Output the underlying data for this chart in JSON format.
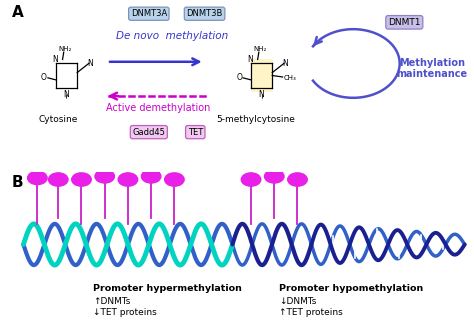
{
  "bg_color": "#ffffff",
  "panel_a_label": "A",
  "panel_b_label": "B",
  "dnmt3a_text": "DNMT3A",
  "dnmt3b_text": "DNMT3B",
  "dnmt1_text": "DNMT1",
  "de_novo_text": "De novo  methylation",
  "active_demeth_text": "Active demethylation",
  "meth_maint_text": "Methylation\nmaintenance",
  "cytosine_label": "Cytosine",
  "methcytosine_label": "5-methylcytosine",
  "gadd45_text": "Gadd45",
  "tet_text": "TET",
  "blue_box_color": "#b8d4ec",
  "purple_box_color": "#c8c0e8",
  "pink_box_color": "#f0c8f0",
  "arrow_blue": "#3535cc",
  "arrow_pink": "#cc00cc",
  "maint_blue": "#5050cc",
  "hyper_title": "Promoter hypermethylation",
  "hyper_line1": "↑DNMTs",
  "hyper_line2": "↓TET proteins",
  "hypo_title": "Promoter hypomethylation",
  "hypo_line1": "↓DNMTs",
  "hypo_line2": "↑TET proteins",
  "cyan_color": "#00d4c0",
  "dark_blue": "#1a2090",
  "mid_blue": "#3060c8",
  "light_blue": "#6090e0",
  "pink_methyl": "#e820e8",
  "stem_color": "#cc20cc",
  "highlight_yellow": "#fff0b0"
}
